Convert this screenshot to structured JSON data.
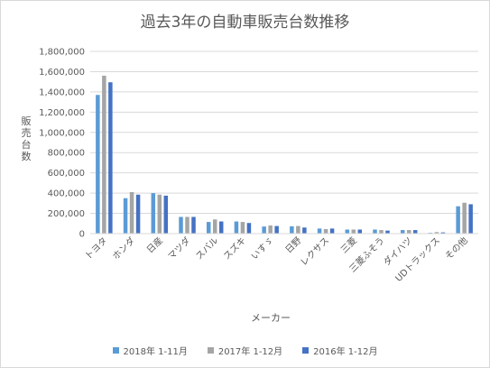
{
  "chart_data": {
    "type": "bar",
    "title": "過去3年の自動車販売台数推移",
    "xlabel": "メーカー",
    "ylabel": "販売台数",
    "ylim": [
      0,
      1800000
    ],
    "y_ticks": [
      "0",
      "200,000",
      "400,000",
      "600,000",
      "800,000",
      "1,000,000",
      "1,200,000",
      "1,400,000",
      "1,600,000",
      "1,800,000"
    ],
    "grid": true,
    "legend_position": "bottom",
    "categories": [
      "トヨタ",
      "ホンダ",
      "日産",
      "マツダ",
      "スバル",
      "スズキ",
      "いすゞ",
      "日野",
      "レクサス",
      "三菱",
      "三菱ふそう",
      "ダイハツ",
      "UDトラックス",
      "その他"
    ],
    "series": [
      {
        "name": "2018年 1-11月",
        "color": "#5b9bd5",
        "values": [
          1370000,
          350000,
          400000,
          165000,
          115000,
          120000,
          70000,
          72000,
          50000,
          40000,
          40000,
          35000,
          8000,
          270000
        ]
      },
      {
        "name": "2017年 1-12月",
        "color": "#a5a5a5",
        "values": [
          1560000,
          410000,
          385000,
          165000,
          140000,
          115000,
          80000,
          75000,
          45000,
          40000,
          35000,
          35000,
          15000,
          305000
        ]
      },
      {
        "name": "2016年 1-12月",
        "color": "#4472c4",
        "values": [
          1495000,
          385000,
          375000,
          165000,
          120000,
          105000,
          75000,
          60000,
          50000,
          40000,
          30000,
          35000,
          12000,
          290000
        ]
      }
    ]
  }
}
